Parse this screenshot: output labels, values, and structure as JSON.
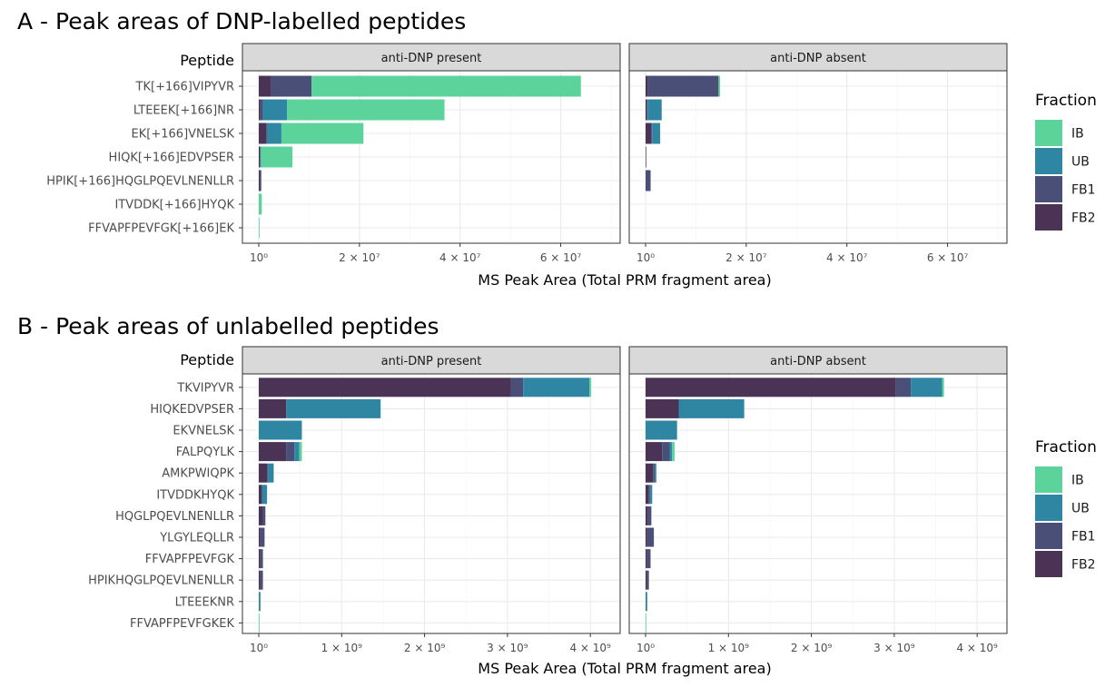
{
  "legend": {
    "title": "Fraction",
    "items": [
      {
        "name": "IB",
        "color": "#5bd39b"
      },
      {
        "name": "UB",
        "color": "#2e86a3"
      },
      {
        "name": "FB1",
        "color": "#4a4f78"
      },
      {
        "name": "FB2",
        "color": "#4a3354"
      }
    ]
  },
  "chart_data": [
    {
      "type": "bar",
      "orientation": "horizontal",
      "stacked": true,
      "title": "A - Peak areas of DNP-labelled peptides",
      "ylabel": "Peptide",
      "xlabel": "MS Peak Area (Total PRM fragment area)",
      "xlim": [
        0,
        70000000
      ],
      "x_ticks": [
        {
          "value": 0,
          "label": "10⁰"
        },
        {
          "value": 20000000,
          "label": "2 × 10⁷"
        },
        {
          "value": 40000000,
          "label": "4 × 10⁷"
        },
        {
          "value": 60000000,
          "label": "6 × 10⁷"
        }
      ],
      "categories": [
        "TK[+166]VIPYVR",
        "LTEEEK[+166]NR",
        "EK[+166]VNELSK",
        "HIQK[+166]EDVPSER",
        "HPIK[+166]HQGLPQEVLNENLLR",
        "ITVDDK[+166]HYQK",
        "FFVAPFPEVFGK[+166]EK"
      ],
      "stack_order": [
        "FB2",
        "FB1",
        "UB",
        "IB"
      ],
      "facets": [
        {
          "label": "anti-DNP present",
          "series": [
            {
              "name": "FB2",
              "values": [
                2500000,
                300000,
                1500000,
                200000,
                300000,
                0,
                0
              ]
            },
            {
              "name": "FB1",
              "values": [
                8000000,
                500000,
                200000,
                100000,
                200000,
                0,
                0
              ]
            },
            {
              "name": "UB",
              "values": [
                0,
                4800000,
                2800000,
                100000,
                0,
                0,
                0
              ]
            },
            {
              "name": "IB",
              "values": [
                53500000,
                31300000,
                16300000,
                6300000,
                0,
                600000,
                100000
              ]
            }
          ]
        },
        {
          "label": "anti-DNP absent",
          "series": [
            {
              "name": "FB2",
              "values": [
                500000,
                200000,
                1100000,
                0,
                0,
                0,
                0
              ]
            },
            {
              "name": "FB1",
              "values": [
                14000000,
                200000,
                200000,
                100000,
                1000000,
                0,
                0
              ]
            },
            {
              "name": "UB",
              "values": [
                0,
                2800000,
                1600000,
                0,
                0,
                0,
                0
              ]
            },
            {
              "name": "IB",
              "values": [
                300000,
                0,
                0,
                0,
                0,
                0,
                0
              ]
            }
          ]
        }
      ]
    },
    {
      "type": "bar",
      "orientation": "horizontal",
      "stacked": true,
      "title": "B - Peak areas of unlabelled peptides",
      "ylabel": "Peptide",
      "xlabel": "MS Peak Area (Total PRM fragment area)",
      "xlim": [
        0,
        4250000000
      ],
      "x_ticks": [
        {
          "value": 0,
          "label": "10⁰"
        },
        {
          "value": 1000000000,
          "label": "1 × 10⁹"
        },
        {
          "value": 2000000000,
          "label": "2 × 10⁹"
        },
        {
          "value": 3000000000,
          "label": "3 × 10⁹"
        },
        {
          "value": 4000000000,
          "label": "4 × 10⁹"
        }
      ],
      "categories": [
        "TKVIPYVR",
        "HIQKEDVPSER",
        "EKVNELSK",
        "FALPQYLK",
        "AMKPWIQPK",
        "ITVDDKHYQK",
        "HQGLPQEVLNENLLR",
        "YLGYLEQLLR",
        "FFVAPFPEVFGK",
        "HPIKHQGLPQEVLNENLLR",
        "LTEEEKNR",
        "FFVAPFPEVFGKEK"
      ],
      "stack_order": [
        "FB2",
        "FB1",
        "UB",
        "IB"
      ],
      "facets": [
        {
          "label": "anti-DNP present",
          "series": [
            {
              "name": "FB2",
              "values": [
                3040000000,
                330000000,
                0,
                330000000,
                100000000,
                40000000,
                50000000,
                20000000,
                20000000,
                20000000,
                0,
                0
              ]
            },
            {
              "name": "FB1",
              "values": [
                150000000,
                0,
                0,
                100000000,
                10000000,
                0,
                30000000,
                50000000,
                30000000,
                30000000,
                0,
                0
              ]
            },
            {
              "name": "UB",
              "values": [
                800000000,
                1140000000,
                520000000,
                60000000,
                70000000,
                60000000,
                0,
                0,
                0,
                0,
                20000000,
                0
              ]
            },
            {
              "name": "IB",
              "values": [
                20000000,
                0,
                0,
                30000000,
                0,
                0,
                0,
                0,
                0,
                0,
                0,
                5000000
              ]
            }
          ]
        },
        {
          "label": "anti-DNP absent",
          "series": [
            {
              "name": "FB2",
              "values": [
                3020000000,
                400000000,
                0,
                200000000,
                90000000,
                40000000,
                30000000,
                20000000,
                20000000,
                20000000,
                0,
                0
              ]
            },
            {
              "name": "FB1",
              "values": [
                180000000,
                0,
                0,
                90000000,
                20000000,
                10000000,
                40000000,
                80000000,
                40000000,
                20000000,
                0,
                0
              ]
            },
            {
              "name": "UB",
              "values": [
                380000000,
                790000000,
                380000000,
                30000000,
                20000000,
                30000000,
                0,
                0,
                0,
                0,
                20000000,
                0
              ]
            },
            {
              "name": "IB",
              "values": [
                20000000,
                0,
                0,
                30000000,
                0,
                0,
                0,
                0,
                0,
                0,
                0,
                5000000
              ]
            }
          ]
        }
      ]
    }
  ]
}
